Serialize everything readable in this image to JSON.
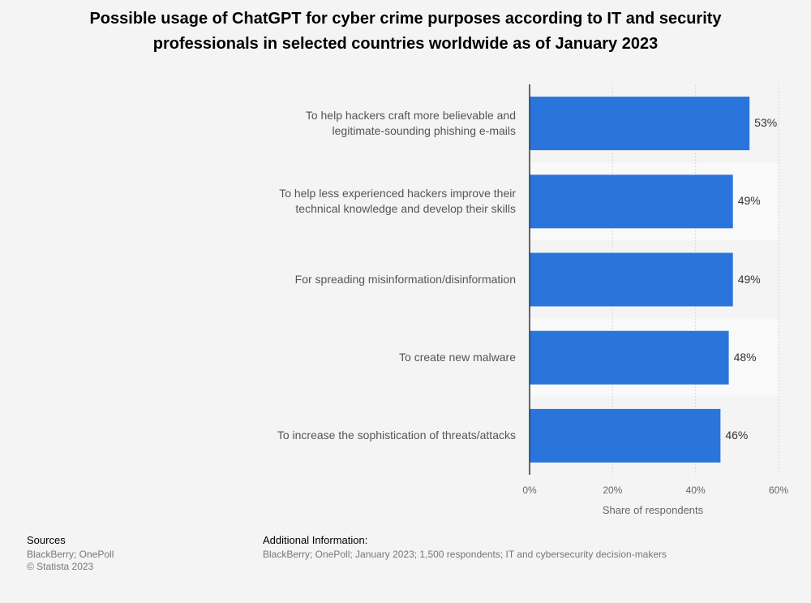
{
  "title": "Possible usage of ChatGPT for cyber crime purposes according to IT and security\nprofessionals in selected countries worldwide as of January 2023",
  "footer": {
    "sources_heading": "Sources",
    "sources_text": "BlackBerry; OnePoll",
    "copyright": "© Statista 2023",
    "additional_heading": "Additional Information:",
    "additional_text": "BlackBerry; OnePoll; January 2023; 1,500 respondents; IT and cybersecurity decision-makers"
  },
  "colors": {
    "bar": "#2a75dc",
    "band": "#f9f9f9",
    "background": "#f4f4f4"
  },
  "chart_data": {
    "type": "bar",
    "orientation": "horizontal",
    "categories": [
      "To help hackers craft more believable and\nlegitimate-sounding phishing e-mails",
      "To help less experienced hackers improve their\ntechnical knowledge and develop their skills",
      "For spreading misinformation/disinformation",
      "To create new malware",
      "To increase the sophistication of threats/attacks"
    ],
    "values": [
      53,
      49,
      49,
      48,
      46
    ],
    "value_labels": [
      "53%",
      "49%",
      "49%",
      "48%",
      "46%"
    ],
    "xlabel": "Share of respondents",
    "xlim": [
      0,
      60
    ],
    "x_ticks": [
      0,
      20,
      40,
      60
    ],
    "x_tick_labels": [
      "0%",
      "20%",
      "40%",
      "60%"
    ],
    "grid": true,
    "legend": "none"
  }
}
